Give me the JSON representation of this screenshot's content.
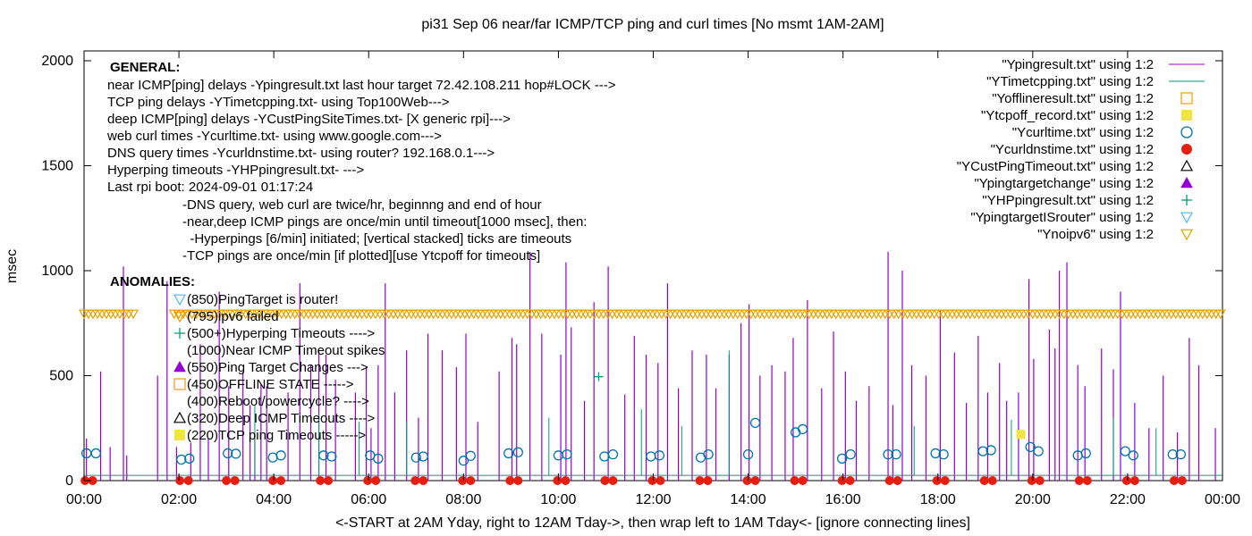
{
  "chart_data": {
    "type": "line",
    "title": "pi31 Sep 06  near/far ICMP/TCP ping and curl times [No msmt 1AM-2AM]",
    "ylabel": "msec",
    "xlabel": "<-START at 2AM Yday, right to 12AM Tday->, then wrap left to 1AM Tday<- [ignore connecting lines]",
    "xlim": [
      0,
      24
    ],
    "ylim": [
      0,
      2100
    ],
    "y_ticks": [
      "0",
      "500",
      "1000",
      "1500",
      "2000"
    ],
    "y_tick_values": [
      0,
      500,
      1000,
      1500,
      2000
    ],
    "x_ticks": [
      "00:00",
      "02:00",
      "04:00",
      "06:00",
      "08:00",
      "10:00",
      "12:00",
      "14:00",
      "16:00",
      "18:00",
      "20:00",
      "22:00",
      "00:00"
    ],
    "x_tick_values": [
      0,
      2,
      4,
      6,
      8,
      10,
      12,
      14,
      16,
      18,
      20,
      22,
      24
    ],
    "grid": false,
    "legend_position": "top-right",
    "annotations": {
      "general_header": "GENERAL:",
      "general_lines": [
        "near ICMP[ping] delays -Ypingresult.txt last hour target 72.42.108.211 hop#LOCK --->",
        "TCP ping delays -YTimetcpping.txt- using Top100Web--->",
        "deep ICMP[ping] delays -YCustPingSiteTimes.txt- [X generic rpi]--->",
        "web curl times -Ycurltime.txt- using www.google.com--->",
        "DNS query times -Ycurldnstime.txt- using router? 192.168.0.1--->",
        "Hyperping timeouts -YHPpingresult.txt- --->",
        "Last rpi boot: 2024-09-01 01:17:24"
      ],
      "notes": [
        "-DNS query, web curl are twice/hr, beginnng and end of hour",
        "-near,deep ICMP pings are once/min until timeout[1000 msec], then:",
        "  -Hyperpings [6/min] initiated; [vertical stacked] ticks are timeouts",
        "-TCP pings are once/min [if plotted][use Ytcpoff for timeouts]"
      ],
      "anomalies_header": "ANOMALIES:",
      "anomalies": [
        {
          "text": "(850)PingTarget is router!",
          "marker": "triangle-down-open",
          "color": "#56b4e9"
        },
        {
          "text": "(795)ipv6 failed",
          "marker": "triangle-down-open",
          "color": "#e69f00"
        },
        {
          "text": "(500+)Hyperping Timeouts ---->",
          "marker": "plus",
          "color": "#009e73"
        },
        {
          "text": "(1000)Near ICMP Timeout spikes",
          "marker": "none",
          "color": "#9400d3"
        },
        {
          "text": "(550)Ping Target Changes --->",
          "marker": "triangle-up-filled",
          "color": "#9400d3"
        },
        {
          "text": "(450)OFFLINE STATE ----->",
          "marker": "square-open",
          "color": "#e69f00"
        },
        {
          "text": "(400)Reboot/powercycle? ---->",
          "marker": "none",
          "color": "#000000"
        },
        {
          "text": "(320)Deep ICMP Timeouts ---->",
          "marker": "triangle-up-open",
          "color": "#000000"
        },
        {
          "text": "(220)TCP ping Timeouts ----->",
          "marker": "square-filled",
          "color": "#f0e442"
        }
      ]
    },
    "legend": [
      {
        "label": "\"Ypingresult.txt\" using 1:2",
        "marker": "line",
        "color": "#9400d3"
      },
      {
        "label": "\"YTimetcpping.txt\" using 1:2",
        "marker": "line",
        "color": "#009e73"
      },
      {
        "label": "\"Yofflineresult.txt\" using 1:2",
        "marker": "square-open",
        "color": "#e69f00"
      },
      {
        "label": "\"Ytcpoff_record.txt\" using 1:2",
        "marker": "square-filled",
        "color": "#f0e442"
      },
      {
        "label": "\"Ycurltime.txt\" using 1:2",
        "marker": "circle-open",
        "color": "#0072b2"
      },
      {
        "label": "\"Ycurldnstime.txt\" using 1:2",
        "marker": "circle-filled",
        "color": "#e51e10"
      },
      {
        "label": "\"YCustPingTimeout.txt\" using 1:2",
        "marker": "triangle-up-open",
        "color": "#000000"
      },
      {
        "label": "\"Ypingtargetchange\" using 1:2",
        "marker": "triangle-up-filled",
        "color": "#9400d3"
      },
      {
        "label": "\"YHPpingresult.txt\" using 1:2",
        "marker": "plus",
        "color": "#009e73"
      },
      {
        "label": "\"YpingtargetISrouter\" using 1:2",
        "marker": "triangle-down-open",
        "color": "#56b4e9"
      },
      {
        "label": "\"Ynoipv6\" using 1:2",
        "marker": "triangle-down-open",
        "color": "#e69f00"
      }
    ],
    "series": [
      {
        "name": "\"Ypingresult.txt\" using 1:2",
        "style": "impulses",
        "color": "#9400d3",
        "x": [
          0.05,
          0.35,
          0.55,
          0.83,
          0.9,
          1.55,
          1.75,
          1.95,
          2.25,
          2.45,
          2.62,
          2.85,
          3.05,
          3.35,
          3.5,
          3.6,
          3.73,
          3.85,
          4.3,
          4.55,
          4.78,
          4.95,
          5.1,
          5.3,
          5.72,
          5.95,
          6.05,
          6.2,
          6.35,
          6.55,
          6.8,
          7.05,
          7.25,
          7.55,
          7.85,
          8.05,
          8.3,
          8.75,
          9.02,
          9.12,
          9.4,
          9.65,
          10.05,
          10.16,
          10.27,
          10.55,
          10.75,
          11.05,
          11.4,
          11.6,
          11.85,
          12.1,
          12.3,
          12.53,
          12.82,
          13.12,
          13.32,
          13.6,
          13.85,
          14.02,
          14.25,
          14.5,
          14.78,
          14.95,
          15.25,
          15.55,
          15.8,
          16.05,
          16.28,
          16.55,
          16.95,
          17.05,
          17.25,
          17.45,
          17.75,
          18.05,
          18.35,
          18.6,
          18.85,
          19.05,
          19.3,
          19.45,
          19.7,
          19.92,
          20.02,
          20.35,
          20.47,
          20.56,
          20.72,
          20.95,
          21.1,
          21.45,
          21.7,
          21.85,
          22.15,
          22.45,
          22.75,
          23.05,
          23.3,
          23.5,
          23.85
        ],
        "y": [
          200,
          520,
          160,
          1020,
          120,
          500,
          950,
          160,
          180,
          650,
          200,
          900,
          450,
          520,
          360,
          220,
          460,
          450,
          420,
          940,
          550,
          620,
          600,
          480,
          420,
          540,
          250,
          550,
          940,
          420,
          620,
          300,
          700,
          620,
          540,
          700,
          280,
          520,
          680,
          650,
          1090,
          700,
          600,
          1040,
          730,
          380,
          850,
          1020,
          410,
          690,
          600,
          560,
          940,
          440,
          620,
          600,
          440,
          600,
          750,
          840,
          500,
          550,
          520,
          680,
          860,
          440,
          710,
          520,
          380,
          450,
          1090,
          360,
          1000,
          550,
          500,
          810,
          610,
          370,
          690,
          420,
          560,
          380,
          420,
          960,
          580,
          720,
          630,
          1000,
          1040,
          550,
          450,
          630,
          530,
          900,
          370,
          250,
          500,
          230,
          680,
          550,
          250
        ]
      },
      {
        "name": "\"YTimetcpping.txt\" using 1:2",
        "style": "lines",
        "color": "#009e73",
        "baseline": 25,
        "x": [
          3.6,
          4.95,
          5.8,
          6.8,
          9.8,
          11.75,
          12.6,
          13.6,
          17.5,
          19.55,
          21.7,
          22.6
        ],
        "y": [
          360,
          320,
          280,
          280,
          300,
          340,
          260,
          620,
          260,
          290,
          300,
          250
        ]
      },
      {
        "name": "\"YCurlTime.txt\" using 1:2",
        "style": "points",
        "marker": "circle-open",
        "color": "#0072b2",
        "x": [
          0.05,
          0.25,
          2.05,
          2.22,
          3.03,
          3.2,
          3.98,
          4.15,
          5.05,
          5.22,
          6.03,
          6.2,
          7.0,
          7.15,
          8.0,
          8.15,
          8.95,
          9.15,
          10.0,
          10.18,
          10.97,
          11.15,
          11.95,
          12.13,
          13.0,
          13.16,
          14.0,
          14.15,
          15.0,
          15.15,
          15.98,
          16.16,
          16.95,
          17.12,
          17.95,
          18.12,
          18.95,
          19.12,
          19.95,
          20.12,
          20.95,
          21.12,
          21.95,
          22.12,
          22.95,
          23.12
        ],
        "y": [
          130,
          130,
          100,
          105,
          130,
          128,
          110,
          120,
          120,
          115,
          120,
          105,
          110,
          115,
          95,
          118,
          130,
          135,
          120,
          125,
          115,
          125,
          115,
          120,
          110,
          125,
          125,
          275,
          230,
          245,
          105,
          125,
          125,
          125,
          130,
          125,
          140,
          145,
          160,
          140,
          120,
          130,
          140,
          120,
          125,
          125
        ]
      },
      {
        "name": "\"Ycurldnstime.txt\" using 1:2",
        "style": "points",
        "marker": "circle-filled",
        "color": "#e51e10",
        "x": [
          0.02,
          0.18,
          2.02,
          2.2,
          3.0,
          3.18,
          3.98,
          4.15,
          4.98,
          5.15,
          5.98,
          6.15,
          6.98,
          7.15,
          7.98,
          8.15,
          8.98,
          9.15,
          9.98,
          10.15,
          10.98,
          11.15,
          11.98,
          12.15,
          12.98,
          13.15,
          13.98,
          14.15,
          14.98,
          15.15,
          15.98,
          16.15,
          16.98,
          17.15,
          17.98,
          18.15,
          18.98,
          19.15,
          19.98,
          20.15,
          20.98,
          21.15,
          21.98,
          22.15,
          22.98,
          23.15
        ],
        "y": [
          0,
          0,
          0,
          0,
          0,
          0,
          0,
          0,
          0,
          0,
          0,
          0,
          0,
          0,
          0,
          0,
          0,
          0,
          0,
          0,
          0,
          0,
          0,
          0,
          0,
          0,
          0,
          0,
          0,
          0,
          0,
          0,
          0,
          0,
          0,
          0,
          0,
          0,
          0,
          0,
          0,
          0,
          0,
          0,
          0,
          0
        ]
      },
      {
        "name": "\"YHPpingresult.txt\" using 1:2",
        "style": "points",
        "marker": "plus",
        "color": "#009e73",
        "x": [
          10.85
        ],
        "y": [
          495
        ]
      },
      {
        "name": "\"Ytcpoff_record.txt\" using 1:2",
        "style": "points",
        "marker": "square-filled",
        "color": "#f0e442",
        "x": [
          19.75
        ],
        "y": [
          220
        ]
      },
      {
        "name": "\"Ynoipv6\" using 1:2",
        "style": "points",
        "marker": "triangle-down-open",
        "color": "#e69f00",
        "value": 795,
        "ranges": [
          [
            0,
            1.05
          ],
          [
            1.9,
            24
          ]
        ]
      }
    ]
  }
}
